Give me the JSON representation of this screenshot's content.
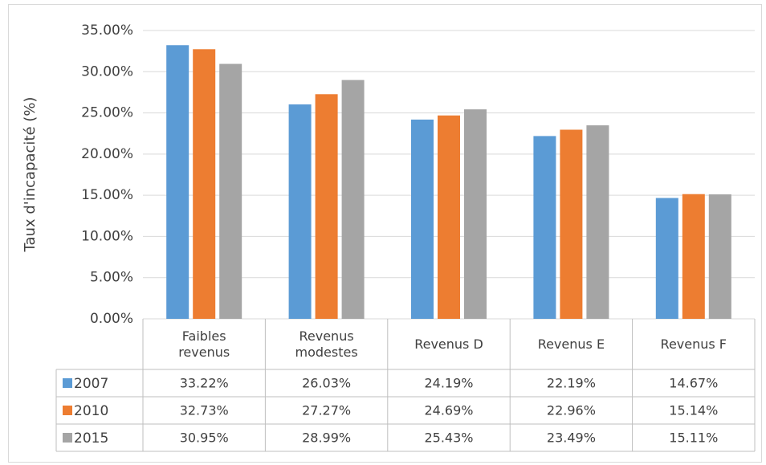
{
  "chart_data": {
    "type": "bar",
    "y_label": "Taux d'incapacité (%)",
    "categories": [
      "Faibles\nrevenus",
      "Revenus\nmodestes",
      "Revenus D",
      "Revenus E",
      "Revenus F"
    ],
    "series": [
      {
        "name": "2007",
        "color": "#5b9bd5",
        "values": [
          33.22,
          26.03,
          24.19,
          22.19,
          14.67
        ],
        "value_labels": [
          "33.22%",
          "26.03%",
          "24.19%",
          "22.19%",
          "14.67%"
        ]
      },
      {
        "name": "2010",
        "color": "#ed7d31",
        "values": [
          32.73,
          27.27,
          24.69,
          22.96,
          15.14
        ],
        "value_labels": [
          "32.73%",
          "27.27%",
          "24.69%",
          "22.96%",
          "15.14%"
        ]
      },
      {
        "name": "2015",
        "color": "#a5a5a5",
        "values": [
          30.95,
          28.99,
          25.43,
          23.49,
          15.11
        ],
        "value_labels": [
          "30.95%",
          "28.99%",
          "25.43%",
          "23.49%",
          "15.11%"
        ]
      }
    ],
    "ylim": [
      0,
      35
    ],
    "yticks": [
      {
        "value": 0,
        "label": "0.00%"
      },
      {
        "value": 5,
        "label": "5.00%"
      },
      {
        "value": 10,
        "label": "10.00%"
      },
      {
        "value": 15,
        "label": "15.00%"
      },
      {
        "value": 20,
        "label": "20.00%"
      },
      {
        "value": 25,
        "label": "25.00%"
      },
      {
        "value": 30,
        "label": "30.00%"
      },
      {
        "value": 35,
        "label": "35.00%"
      }
    ],
    "grid": true
  }
}
